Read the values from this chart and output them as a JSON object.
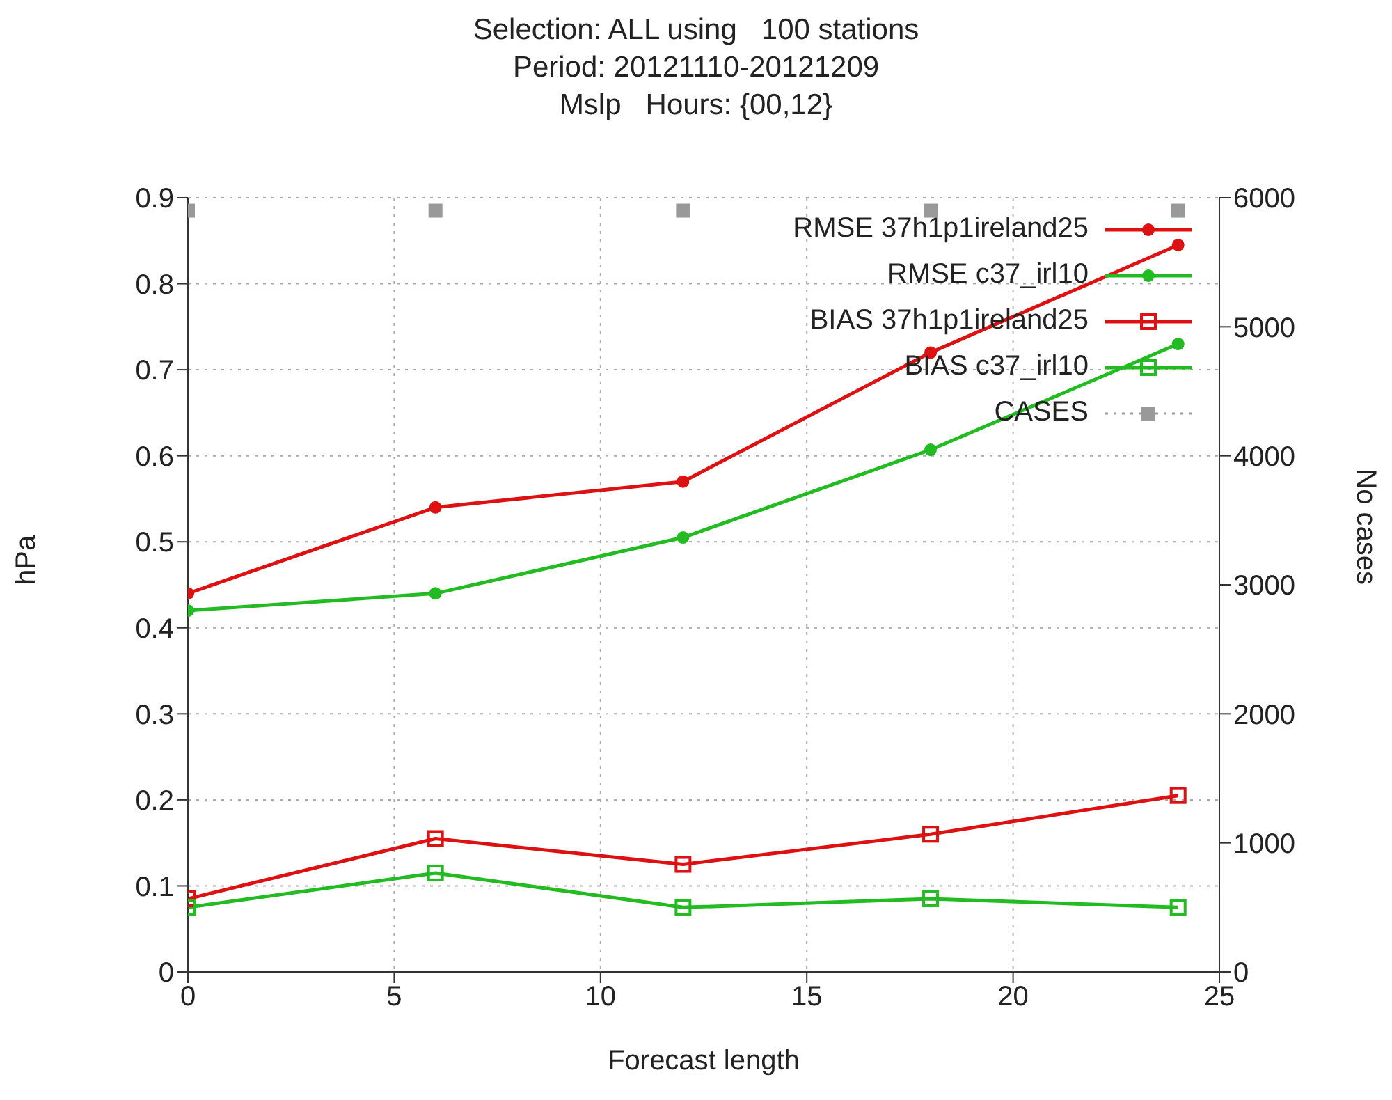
{
  "chart_data": {
    "type": "line",
    "title": "Selection: ALL using   100 stations\nPeriod: 20121110-20121209\nMslp   Hours: {00,12}",
    "xlabel": "Forecast length",
    "ylabel": "hPa",
    "y2label": "No cases",
    "x": [
      0,
      6,
      12,
      18,
      24
    ],
    "series": [
      {
        "name": "RMSE 37h1p1ireland25",
        "color": "#dd1111",
        "marker": "circle",
        "values": [
          0.44,
          0.54,
          0.57,
          0.72,
          0.845
        ]
      },
      {
        "name": "RMSE c37_irl10",
        "color": "#22bb22",
        "marker": "circle",
        "values": [
          0.42,
          0.44,
          0.505,
          0.607,
          0.73
        ]
      },
      {
        "name": "BIAS 37h1p1ireland25",
        "color": "#dd1111",
        "marker": "square",
        "values": [
          0.085,
          0.155,
          0.125,
          0.16,
          0.205
        ]
      },
      {
        "name": "BIAS c37_irl10",
        "color": "#22bb22",
        "marker": "square",
        "values": [
          0.075,
          0.115,
          0.075,
          0.085,
          0.075
        ]
      },
      {
        "name": "CASES",
        "type": "scatter",
        "axis": "y2",
        "color": "#999999",
        "marker": "square",
        "line_style": "dotted",
        "values": [
          5900,
          5900,
          5900,
          5900,
          5900
        ]
      }
    ],
    "xlim": [
      0,
      25
    ],
    "xticks": [
      0,
      5,
      10,
      15,
      20,
      25
    ],
    "ylim": [
      0,
      0.9
    ],
    "yticks": [
      0,
      0.1,
      0.2,
      0.3,
      0.4,
      0.5,
      0.6,
      0.7,
      0.8,
      0.9
    ],
    "y2lim": [
      0,
      6000
    ],
    "y2ticks": [
      0,
      1000,
      2000,
      3000,
      4000,
      5000,
      6000
    ],
    "grid": true,
    "legend": "top right"
  }
}
